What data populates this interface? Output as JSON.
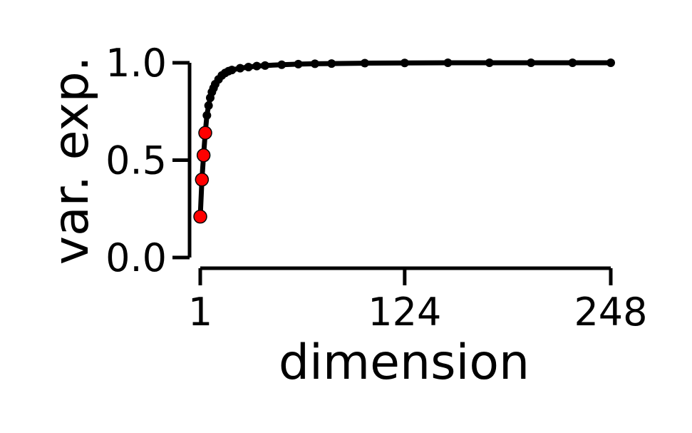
{
  "chart_data": {
    "type": "line",
    "title": "",
    "xlabel": "dimension",
    "ylabel": "var. exp.",
    "xlim": [
      1,
      248
    ],
    "ylim": [
      0,
      1
    ],
    "x_ticks": [
      1,
      124,
      248
    ],
    "x_tick_labels": [
      "1",
      "124",
      "248"
    ],
    "y_ticks": [
      0,
      0.5,
      1
    ],
    "y_tick_labels": [
      "0.0",
      "0.5",
      "1.0"
    ],
    "grid": false,
    "legend": "none",
    "series": [
      {
        "color": "#000000",
        "marker": "dot",
        "x": [
          1,
          2,
          3,
          4,
          5,
          6,
          7,
          8,
          9,
          10,
          12,
          14,
          16,
          18,
          20,
          25,
          30,
          35,
          40,
          50,
          60,
          70,
          80,
          100,
          124,
          150,
          175,
          200,
          225,
          248
        ],
        "y": [
          0.21,
          0.4,
          0.525,
          0.64,
          0.73,
          0.78,
          0.82,
          0.85,
          0.87,
          0.89,
          0.915,
          0.935,
          0.948,
          0.957,
          0.963,
          0.972,
          0.978,
          0.983,
          0.986,
          0.99,
          0.993,
          0.995,
          0.996,
          0.998,
          0.999,
          1.0,
          1.0,
          1.0,
          1.0,
          1.0
        ]
      }
    ],
    "highlight_points": {
      "color": "#ff0000",
      "x": [
        1,
        2,
        3,
        4
      ],
      "y": [
        0.21,
        0.4,
        0.525,
        0.64
      ]
    }
  }
}
